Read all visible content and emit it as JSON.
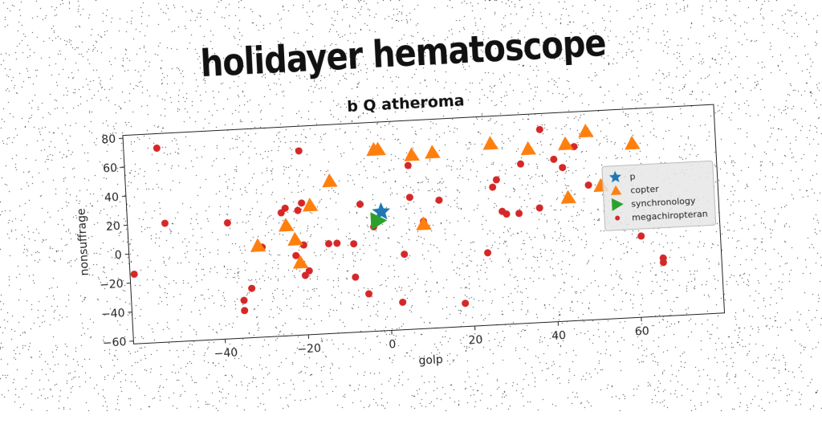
{
  "figure": {
    "suptitle": "holidayer hematoscope"
  },
  "chart_data": {
    "type": "scatter",
    "title": "b Q atheroma",
    "xlabel": "golp",
    "ylabel": "nonsuffrage",
    "xlim": [
      -62,
      80
    ],
    "ylim": [
      -62,
      82
    ],
    "xticks": [
      -40,
      -20,
      0,
      20,
      40,
      60
    ],
    "yticks": [
      -60,
      -40,
      -20,
      0,
      20,
      40,
      60,
      80
    ],
    "grid": false,
    "legend_position": "right",
    "series": [
      {
        "name": "p",
        "marker": "star",
        "color": "#1f77b4",
        "points": [
          [
            -1,
            20
          ]
        ]
      },
      {
        "name": "copter",
        "marker": "triangle-up",
        "color": "#ff7f0e",
        "points": [
          [
            -2,
            63
          ],
          [
            -1,
            63
          ],
          [
            7,
            58
          ],
          [
            12,
            59
          ],
          [
            -13,
            43
          ],
          [
            -18,
            27
          ],
          [
            -24,
            14
          ],
          [
            -22,
            4
          ],
          [
            -31,
            1
          ],
          [
            -21,
            -12
          ],
          [
            9,
            10
          ],
          [
            26,
            63
          ],
          [
            35,
            58
          ],
          [
            44,
            60
          ],
          [
            49,
            68
          ],
          [
            60,
            58
          ],
          [
            44,
            23
          ],
          [
            52,
            30
          ]
        ]
      },
      {
        "name": "synchronology",
        "marker": "triangle-right",
        "color": "#2ca02c",
        "points": [
          [
            -2,
            14
          ]
        ]
      },
      {
        "name": "megachiropteran",
        "marker": "circle",
        "color": "#d62728",
        "points": [
          [
            -54,
            72
          ],
          [
            -53,
            20
          ],
          [
            -61,
            -14
          ],
          [
            -38,
            18
          ],
          [
            -20,
            65
          ],
          [
            -25,
            23
          ],
          [
            -24,
            26
          ],
          [
            -20,
            29
          ],
          [
            -21,
            24
          ],
          [
            -33,
            -28
          ],
          [
            -35,
            -36
          ],
          [
            -35,
            -43
          ],
          [
            -30,
            0
          ],
          [
            -22,
            -7
          ],
          [
            -20,
            0
          ],
          [
            -19,
            -18
          ],
          [
            -20,
            -21
          ],
          [
            -14,
            0
          ],
          [
            -12,
            0
          ],
          [
            -8,
            -1
          ],
          [
            -8,
            -24
          ],
          [
            -6,
            26
          ],
          [
            -5,
            -36
          ],
          [
            -3,
            10
          ],
          [
            4,
            -10
          ],
          [
            3,
            -43
          ],
          [
            6,
            51
          ],
          [
            6,
            29
          ],
          [
            9,
            12
          ],
          [
            13,
            26
          ],
          [
            18,
            -46
          ],
          [
            24,
            -12
          ],
          [
            26,
            33
          ],
          [
            27,
            38
          ],
          [
            28,
            16
          ],
          [
            29,
            14
          ],
          [
            32,
            14
          ],
          [
            33,
            48
          ],
          [
            37,
            17
          ],
          [
            38,
            71
          ],
          [
            41,
            50
          ],
          [
            43,
            44
          ],
          [
            46,
            58
          ],
          [
            49,
            31
          ],
          [
            61,
            -6
          ],
          [
            66,
            -25
          ],
          [
            66,
            -22
          ]
        ]
      }
    ]
  }
}
